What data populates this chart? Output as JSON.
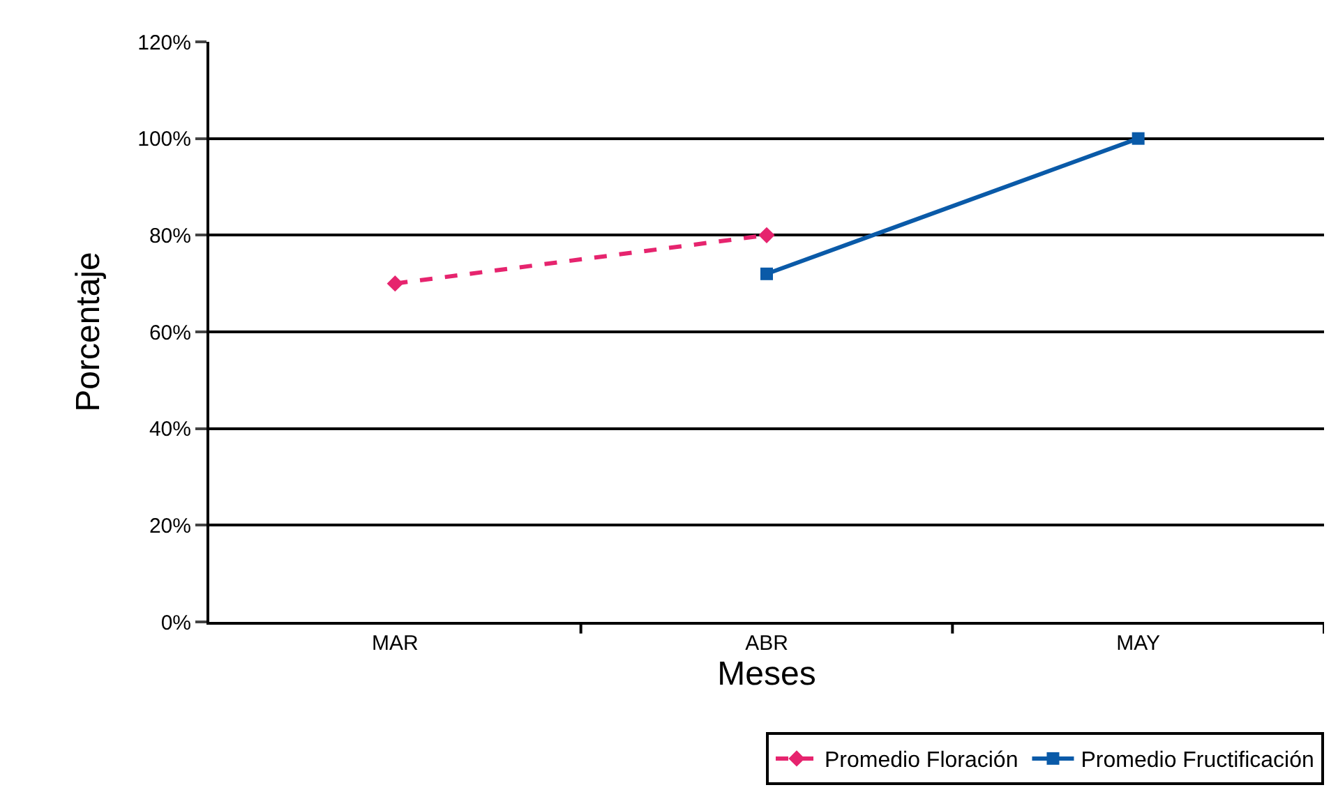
{
  "chart_data": {
    "type": "line",
    "xlabel": "Meses",
    "ylabel": "Porcentaje",
    "categories": [
      "MAR",
      "ABR",
      "MAY"
    ],
    "series": [
      {
        "name": "Promedio Floración",
        "color": "#e6246e",
        "values": [
          70,
          80,
          null
        ],
        "marker": "diamond",
        "line_style": "dashed"
      },
      {
        "name": "Promedio Fructificación",
        "color": "#0a5aa8",
        "values": [
          null,
          72,
          100
        ],
        "marker": "square",
        "line_style": "solid"
      }
    ],
    "ylim": [
      0,
      120
    ],
    "yticks": [
      {
        "value": 0,
        "label": "0%"
      },
      {
        "value": 20,
        "label": "20%"
      },
      {
        "value": 40,
        "label": "40%"
      },
      {
        "value": 60,
        "label": "60%"
      },
      {
        "value": 80,
        "label": "80%"
      },
      {
        "value": 100,
        "label": "100%"
      },
      {
        "value": 120,
        "label": "120%"
      }
    ],
    "grid": "y",
    "legend": "bottom right"
  }
}
